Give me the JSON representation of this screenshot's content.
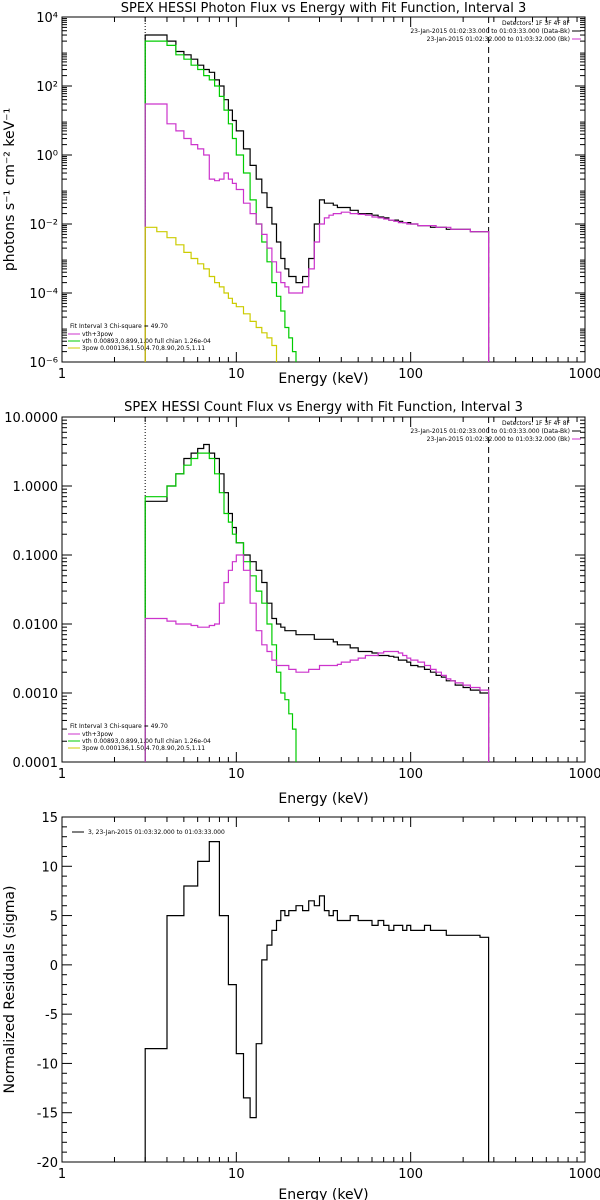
{
  "chart_data": [
    {
      "type": "line",
      "title": "SPEX HESSI Photon Flux vs Energy with Fit Function, Interval 3",
      "xlabel": "Energy (keV)",
      "ylabel": "photons s⁻¹ cm⁻² keV⁻¹",
      "xscale": "log",
      "yscale": "log",
      "xlim": [
        1,
        1000
      ],
      "ylim": [
        1e-06,
        10000
      ],
      "xticks": [
        1,
        10,
        100,
        1000
      ],
      "xtick_labels": [
        "1",
        "10",
        "100",
        "1000"
      ],
      "yticks": [
        1e-06,
        0.0001,
        0.01,
        1,
        100,
        10000
      ],
      "ytick_labels": [
        "10⁻⁶",
        "10⁻⁴",
        "10⁻²",
        "10⁰",
        "10²",
        "10⁴"
      ],
      "vlines": [
        {
          "x": 3,
          "style": "dotted",
          "color": "#000000"
        },
        {
          "x": 280,
          "style": "dashed",
          "color": "#000000"
        }
      ],
      "legend_top_right": {
        "line1": "Detectors: 1F 3F 4F 8F",
        "line2": "23-Jan-2015 01:02:33.000 to 01:03:33.000 (Data-Bk)",
        "line3": "23-Jan-2015 01:02:32.000 to 01:03:32.000 (Bk)"
      },
      "legend_bottom_left": {
        "header": "Fit Interval 3   Chi-square = 49.70",
        "entries": [
          {
            "label": "vth+3pow",
            "color": "#cc33cc"
          },
          {
            "label": "vth 0.00893,0.899,1.00   full chian 1.26e-04",
            "color": "#00cc00"
          },
          {
            "label": "3pow 0.000136,1.50,4.70,8.90,20.5,1.11",
            "color": "#cccc00"
          }
        ]
      },
      "series": [
        {
          "color": "#000000",
          "x": [
            3,
            3.5,
            4,
            4.5,
            5,
            5.5,
            6,
            6.5,
            7,
            7.5,
            8,
            8.5,
            9,
            9.5,
            10,
            11,
            12,
            13,
            14,
            15,
            16,
            17,
            18,
            19,
            20,
            22,
            24,
            26,
            28,
            30,
            32,
            34,
            36,
            38,
            40,
            45,
            50,
            55,
            60,
            65,
            70,
            75,
            80,
            85,
            90,
            95,
            100,
            110,
            120,
            130,
            140,
            150,
            160,
            170,
            180,
            200,
            220,
            250,
            280
          ],
          "y": [
            3000,
            3000,
            2000,
            1000,
            800,
            600,
            400,
            300,
            250,
            150,
            100,
            40,
            20,
            10,
            5,
            1.5,
            0.5,
            0.2,
            0.08,
            0.03,
            0.01,
            0.003,
            0.001,
            0.0005,
            0.0003,
            0.0002,
            0.0003,
            0.001,
            0.01,
            0.05,
            0.04,
            0.04,
            0.035,
            0.03,
            0.03,
            0.025,
            0.02,
            0.02,
            0.018,
            0.016,
            0.015,
            0.013,
            0.013,
            0.012,
            0.011,
            0.011,
            0.01,
            0.009,
            0.009,
            0.008,
            0.008,
            0.008,
            0.007,
            0.007,
            0.007,
            0.007,
            0.006,
            0.006,
            0.006
          ]
        },
        {
          "color": "#00cc00",
          "x": [
            3,
            3.5,
            4,
            4.5,
            5,
            5.5,
            6,
            6.5,
            7,
            7.5,
            8,
            8.5,
            9,
            9.5,
            10,
            11,
            12,
            13,
            14,
            15,
            16,
            17,
            18,
            19,
            20,
            21,
            22
          ],
          "y": [
            2000,
            2000,
            1500,
            800,
            600,
            400,
            300,
            200,
            150,
            100,
            50,
            20,
            8,
            3,
            1,
            0.3,
            0.05,
            0.01,
            0.003,
            0.0008,
            0.0002,
            8e-05,
            3e-05,
            1e-05,
            5e-06,
            2e-06,
            1e-06
          ]
        },
        {
          "color": "#cc33cc",
          "x": [
            3,
            3.5,
            4,
            4.5,
            5,
            5.5,
            6,
            6.5,
            7,
            7.5,
            8,
            8.5,
            9,
            9.5,
            10,
            11,
            12,
            13,
            14,
            15,
            16,
            17,
            18,
            19,
            20,
            22,
            24,
            26,
            28,
            30,
            32,
            34,
            36,
            38,
            40,
            45,
            50,
            55,
            60,
            65,
            70,
            75,
            80,
            85,
            90,
            95,
            100,
            110,
            120,
            130,
            140,
            150,
            160,
            170,
            180,
            200,
            220,
            250,
            280
          ],
          "y": [
            30,
            30,
            8,
            5,
            3,
            2,
            1.5,
            1,
            0.2,
            0.18,
            0.2,
            0.3,
            0.2,
            0.15,
            0.1,
            0.04,
            0.02,
            0.01,
            0.005,
            0.002,
            0.0008,
            0.0004,
            0.0002,
            0.00015,
            0.0001,
            0.0001,
            0.00015,
            0.0005,
            0.003,
            0.01,
            0.015,
            0.018,
            0.02,
            0.02,
            0.022,
            0.02,
            0.019,
            0.018,
            0.016,
            0.015,
            0.014,
            0.013,
            0.012,
            0.011,
            0.011,
            0.01,
            0.01,
            0.009,
            0.009,
            0.009,
            0.008,
            0.008,
            0.008,
            0.007,
            0.007,
            0.007,
            0.006,
            0.006,
            0.006
          ]
        },
        {
          "color": "#cccc00",
          "x": [
            3,
            3.5,
            4,
            4.5,
            5,
            5.5,
            6,
            6.5,
            7,
            7.5,
            8,
            8.5,
            9,
            9.5,
            10,
            11,
            12,
            13,
            14,
            15,
            16,
            17
          ],
          "y": [
            0.008,
            0.006,
            0.004,
            0.0025,
            0.0015,
            0.001,
            0.0007,
            0.0005,
            0.0003,
            0.0002,
            0.00015,
            0.0001,
            7e-05,
            5e-05,
            4e-05,
            2.5e-05,
            1.5e-05,
            1e-05,
            7e-06,
            5e-06,
            3e-06,
            2e-06
          ]
        }
      ]
    },
    {
      "type": "line",
      "title": "SPEX HESSI Count Flux vs Energy with Fit Function, Interval 3",
      "xlabel": "Energy (keV)",
      "ylabel": "",
      "xscale": "log",
      "yscale": "log",
      "xlim": [
        1,
        1000
      ],
      "ylim": [
        0.0001,
        10
      ],
      "xticks": [
        1,
        10,
        100,
        1000
      ],
      "xtick_labels": [
        "1",
        "10",
        "100",
        "1000"
      ],
      "yticks": [
        0.0001,
        0.001,
        0.01,
        0.1,
        1,
        10
      ],
      "ytick_labels": [
        "0.0001",
        "0.0010",
        "0.0100",
        "0.1000",
        "1.0000",
        "10.0000"
      ],
      "vlines": [
        {
          "x": 3,
          "style": "dotted",
          "color": "#000000"
        },
        {
          "x": 280,
          "style": "dashed",
          "color": "#000000"
        }
      ],
      "legend_top_right": {
        "line1": "Detectors: 1F 3F 4F 8F",
        "line2": "23-Jan-2015 01:02:33.000 to 01:03:33.000 (Data-Bk)",
        "line3": "23-Jan-2015 01:02:32.000 to 01:03:32.000 (Bk)"
      },
      "legend_bottom_left": {
        "header": "Fit Interval 3   Chi-square = 49.70",
        "entries": [
          {
            "label": "vth+3pow",
            "color": "#cc33cc"
          },
          {
            "label": "vth 0.00893,0.899,1.00   full chian 1.26e-04",
            "color": "#00cc00"
          },
          {
            "label": "3pow 0.000136,1.50,4.70,8.90,20.5,1.11",
            "color": "#cccc00"
          }
        ]
      },
      "series": [
        {
          "color": "#000000",
          "x": [
            3,
            3.5,
            4,
            4.5,
            5,
            5.5,
            6,
            6.5,
            7,
            7.5,
            8,
            8.5,
            9,
            9.5,
            10,
            11,
            12,
            13,
            14,
            15,
            16,
            17,
            18,
            19,
            20,
            22,
            24,
            26,
            28,
            30,
            32,
            34,
            36,
            38,
            40,
            45,
            50,
            55,
            60,
            65,
            70,
            75,
            80,
            85,
            90,
            95,
            100,
            110,
            120,
            130,
            140,
            150,
            160,
            170,
            180,
            200,
            220,
            250,
            280
          ],
          "y": [
            0.6,
            0.6,
            1.0,
            1.5,
            2.5,
            3.0,
            3.5,
            4.0,
            3.0,
            2.5,
            1.5,
            0.8,
            0.4,
            0.25,
            0.15,
            0.1,
            0.08,
            0.06,
            0.04,
            0.02,
            0.012,
            0.01,
            0.009,
            0.008,
            0.008,
            0.007,
            0.007,
            0.007,
            0.006,
            0.006,
            0.006,
            0.006,
            0.0055,
            0.005,
            0.005,
            0.0045,
            0.004,
            0.004,
            0.0038,
            0.0035,
            0.0035,
            0.0034,
            0.0033,
            0.003,
            0.003,
            0.0028,
            0.0025,
            0.0024,
            0.0022,
            0.002,
            0.0018,
            0.0017,
            0.0015,
            0.0015,
            0.0013,
            0.0012,
            0.0011,
            0.001,
            0.001
          ]
        },
        {
          "color": "#00cc00",
          "x": [
            3,
            3.5,
            4,
            4.5,
            5,
            5.5,
            6,
            6.5,
            7,
            7.5,
            8,
            8.5,
            9,
            9.5,
            10,
            11,
            12,
            13,
            14,
            15,
            16,
            17,
            18,
            19,
            20,
            21,
            22
          ],
          "y": [
            0.7,
            0.7,
            1.0,
            1.5,
            2.0,
            2.5,
            3.0,
            3.0,
            2.5,
            1.5,
            0.8,
            0.4,
            0.3,
            0.2,
            0.15,
            0.08,
            0.05,
            0.03,
            0.02,
            0.01,
            0.005,
            0.002,
            0.001,
            0.0008,
            0.0005,
            0.0003,
            0.0001
          ]
        },
        {
          "color": "#cc33cc",
          "x": [
            3,
            3.5,
            4,
            4.5,
            5,
            5.5,
            6,
            6.5,
            7,
            7.5,
            8,
            8.5,
            9,
            9.5,
            10,
            11,
            12,
            13,
            14,
            15,
            16,
            17,
            18,
            19,
            20,
            22,
            24,
            26,
            28,
            30,
            32,
            34,
            36,
            38,
            40,
            45,
            50,
            55,
            60,
            65,
            70,
            75,
            80,
            85,
            90,
            95,
            100,
            110,
            120,
            130,
            140,
            150,
            160,
            170,
            180,
            200,
            220,
            250,
            280
          ],
          "y": [
            0.012,
            0.012,
            0.011,
            0.01,
            0.01,
            0.0095,
            0.009,
            0.009,
            0.0095,
            0.01,
            0.02,
            0.04,
            0.06,
            0.08,
            0.1,
            0.06,
            0.02,
            0.008,
            0.005,
            0.004,
            0.003,
            0.0025,
            0.0025,
            0.0025,
            0.0022,
            0.002,
            0.002,
            0.0022,
            0.0022,
            0.0025,
            0.0025,
            0.0025,
            0.0025,
            0.0026,
            0.0028,
            0.003,
            0.0032,
            0.0035,
            0.0035,
            0.0038,
            0.004,
            0.004,
            0.004,
            0.0038,
            0.0035,
            0.0032,
            0.003,
            0.0028,
            0.0025,
            0.0022,
            0.002,
            0.0018,
            0.0016,
            0.0015,
            0.0014,
            0.0013,
            0.0012,
            0.0011,
            0.001
          ]
        }
      ]
    },
    {
      "type": "line",
      "title": "",
      "xlabel": "Energy (keV)",
      "ylabel": "Normalized Residuals (sigma)",
      "xscale": "log",
      "yscale": "linear",
      "xlim": [
        1,
        1000
      ],
      "ylim": [
        -20,
        15
      ],
      "xticks": [
        1,
        10,
        100,
        1000
      ],
      "xtick_labels": [
        "1",
        "10",
        "100",
        "1000"
      ],
      "yticks": [
        -20,
        -15,
        -10,
        -5,
        0,
        5,
        10,
        15
      ],
      "ytick_labels": [
        "-20",
        "-15",
        "-10",
        "-5",
        "0",
        "5",
        "10",
        "15"
      ],
      "legend": "3, 23-Jan-2015 01:03:32.000 to 01:03:33.000",
      "series": [
        {
          "color": "#000000",
          "x": [
            3,
            4,
            5,
            6,
            7,
            8,
            9,
            10,
            11,
            12,
            13,
            14,
            15,
            16,
            17,
            18,
            19,
            20,
            22,
            24,
            26,
            28,
            30,
            32,
            34,
            36,
            38,
            40,
            45,
            50,
            55,
            60,
            65,
            70,
            75,
            80,
            85,
            90,
            95,
            100,
            110,
            120,
            130,
            140,
            150,
            160,
            170,
            180,
            200,
            220,
            250,
            280
          ],
          "y": [
            -8.5,
            5.0,
            8.0,
            10.5,
            12.5,
            5.0,
            -2.0,
            -9.0,
            -13.5,
            -15.5,
            -8.0,
            0.5,
            2.0,
            3.5,
            4.5,
            5.5,
            5.0,
            5.5,
            6.0,
            5.5,
            6.5,
            6.0,
            7.0,
            5.5,
            5.0,
            5.5,
            4.5,
            4.5,
            5.0,
            4.5,
            4.5,
            4.0,
            4.5,
            4.0,
            3.5,
            4.0,
            4.0,
            3.5,
            4.0,
            3.5,
            3.5,
            4.0,
            3.5,
            3.5,
            3.5,
            3.0,
            3.0,
            3.0,
            3.0,
            3.0,
            2.8,
            2.6
          ]
        }
      ]
    }
  ]
}
